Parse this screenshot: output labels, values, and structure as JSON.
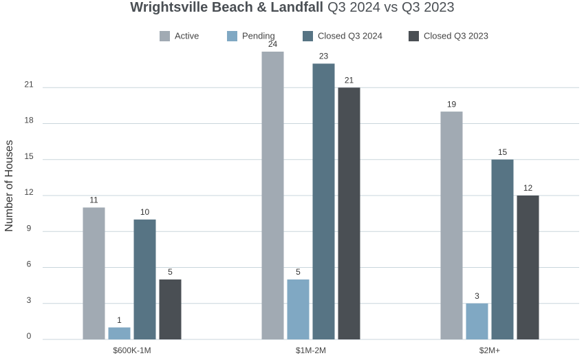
{
  "chart_data": {
    "type": "bar",
    "title": "Wrightsville Beach & Landfall",
    "subtitle": "Q3 2024 vs Q3 2023",
    "y_label": "Number of Houses",
    "categories": [
      "$600K-1M",
      "$1M-2M",
      "$2M+"
    ],
    "series": [
      {
        "name": "Active",
        "color": "#a1aab3",
        "values": [
          11,
          24,
          19
        ]
      },
      {
        "name": "Pending",
        "color": "#80a8c3",
        "values": [
          1,
          5,
          3
        ]
      },
      {
        "name": "Closed Q3 2024",
        "color": "#577484",
        "values": [
          10,
          23,
          15
        ]
      },
      {
        "name": "Closed Q3 2023",
        "color": "#4a4f54",
        "values": [
          5,
          21,
          12
        ]
      }
    ],
    "ylim": [
      0,
      24
    ],
    "yticks": [
      0,
      3,
      6,
      9,
      12,
      15,
      18,
      21
    ],
    "grid": true,
    "legend": "top"
  }
}
